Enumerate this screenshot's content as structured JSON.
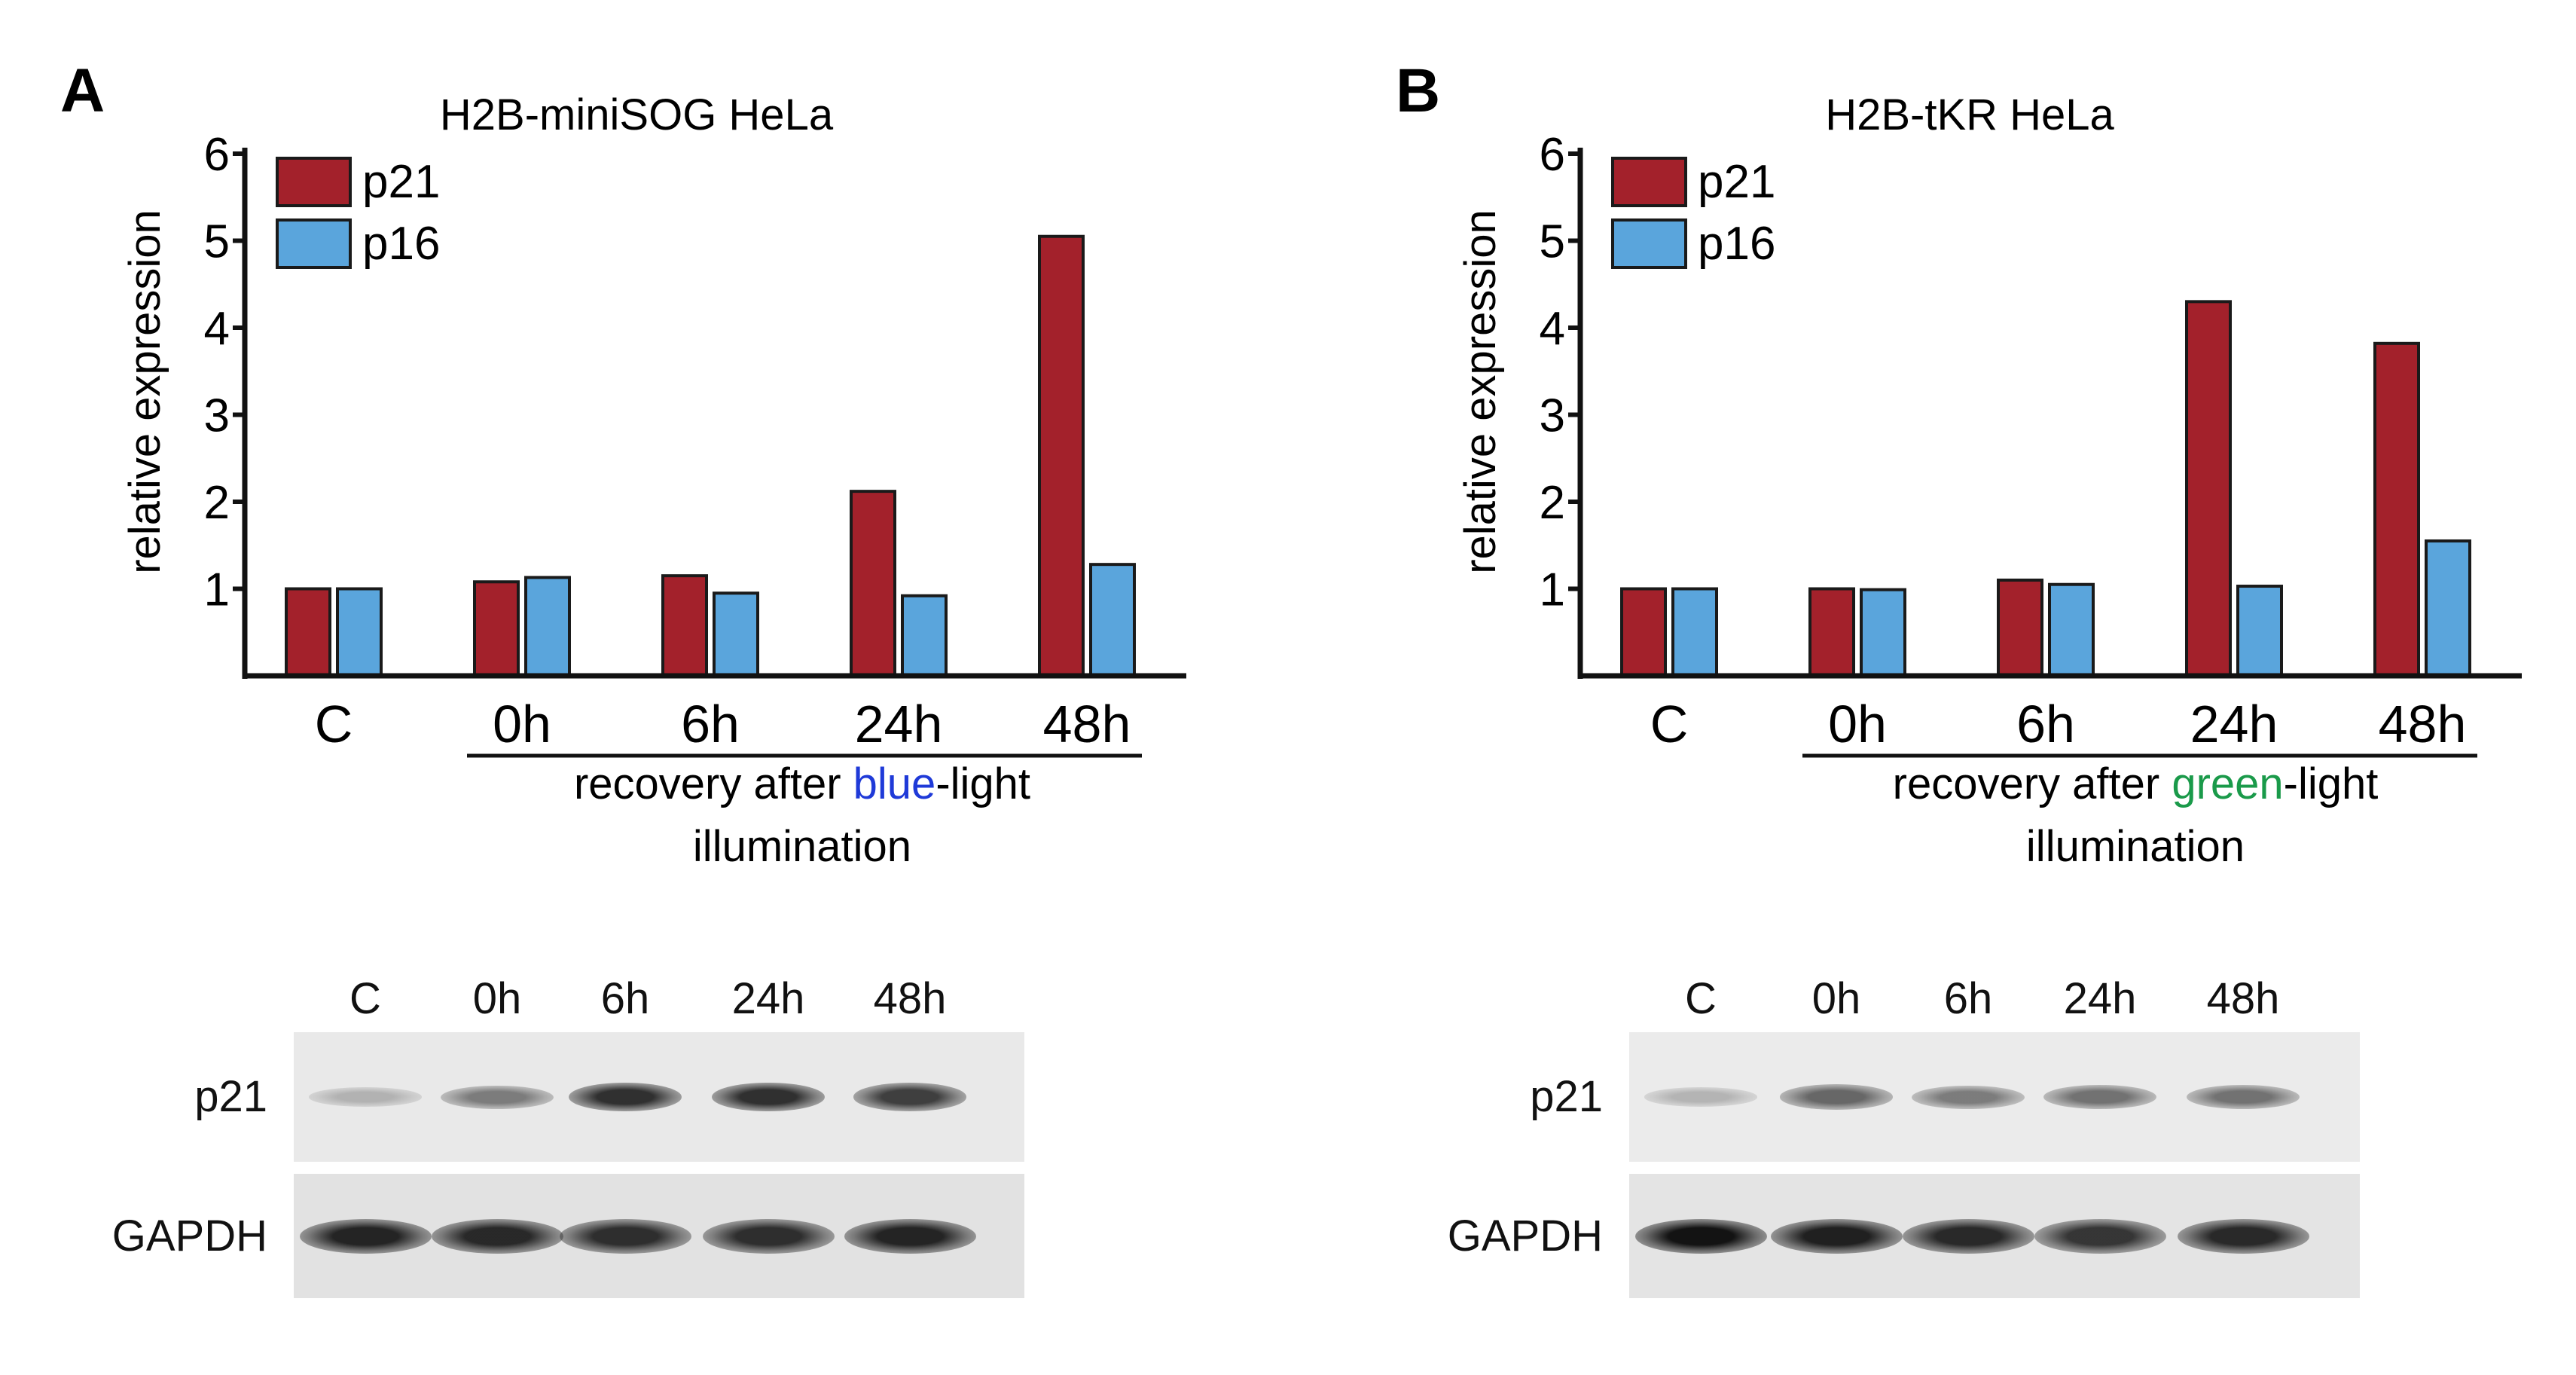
{
  "chart_data": [
    {
      "panel": "A",
      "type": "bar",
      "title": "H2B-miniSOG HeLa",
      "ylabel": "relative expression",
      "ylim": [
        0,
        6
      ],
      "yticks": [
        "1",
        "2",
        "3",
        "4",
        "5",
        "6"
      ],
      "categories": [
        "C",
        "0h",
        "6h",
        "24h",
        "48h"
      ],
      "series": [
        {
          "name": "p21",
          "color": "#a3212b",
          "values": [
            1.0,
            1.08,
            1.15,
            2.12,
            5.05
          ]
        },
        {
          "name": "p16",
          "color": "#5aa5dc",
          "values": [
            1.0,
            1.13,
            0.95,
            0.92,
            1.28
          ]
        }
      ],
      "xlabel_parts": [
        "recovery after ",
        "blue",
        "-light"
      ],
      "xlabel_line2": "illumination",
      "highlight_color": "#1f3ad8",
      "legend": "top-left",
      "grid": false
    },
    {
      "panel": "B",
      "type": "bar",
      "title": "H2B-tKR HeLa",
      "ylabel": "relative expression",
      "ylim": [
        0,
        6
      ],
      "yticks": [
        "1",
        "2",
        "3",
        "4",
        "5",
        "6"
      ],
      "categories": [
        "C",
        "0h",
        "6h",
        "24h",
        "48h"
      ],
      "series": [
        {
          "name": "p21",
          "color": "#a3212b",
          "values": [
            1.0,
            1.0,
            1.1,
            4.3,
            3.82
          ]
        },
        {
          "name": "p16",
          "color": "#5aa5dc",
          "values": [
            1.0,
            0.99,
            1.05,
            1.03,
            1.55
          ]
        }
      ],
      "xlabel_parts": [
        "recovery after ",
        "green",
        "-light"
      ],
      "xlabel_line2": "illumination",
      "highlight_color": "#1a9a4a",
      "legend": "top-left",
      "grid": false
    }
  ],
  "panels": [
    {
      "letter": "A",
      "blot": {
        "lanes": [
          "C",
          "0h",
          "6h",
          "24h",
          "48h"
        ],
        "rows": [
          {
            "label": "p21",
            "intensity": [
              0.25,
              0.5,
              0.85,
              0.85,
              0.78
            ]
          },
          {
            "label": "GAPDH",
            "intensity": [
              0.9,
              0.88,
              0.85,
              0.85,
              0.9
            ]
          }
        ]
      }
    },
    {
      "letter": "B",
      "blot": {
        "lanes": [
          "C",
          "0h",
          "6h",
          "24h",
          "48h"
        ],
        "rows": [
          {
            "label": "p21",
            "intensity": [
              0.25,
              0.6,
              0.5,
              0.55,
              0.55
            ]
          },
          {
            "label": "GAPDH",
            "intensity": [
              0.98,
              0.92,
              0.88,
              0.82,
              0.88
            ]
          }
        ]
      }
    }
  ]
}
